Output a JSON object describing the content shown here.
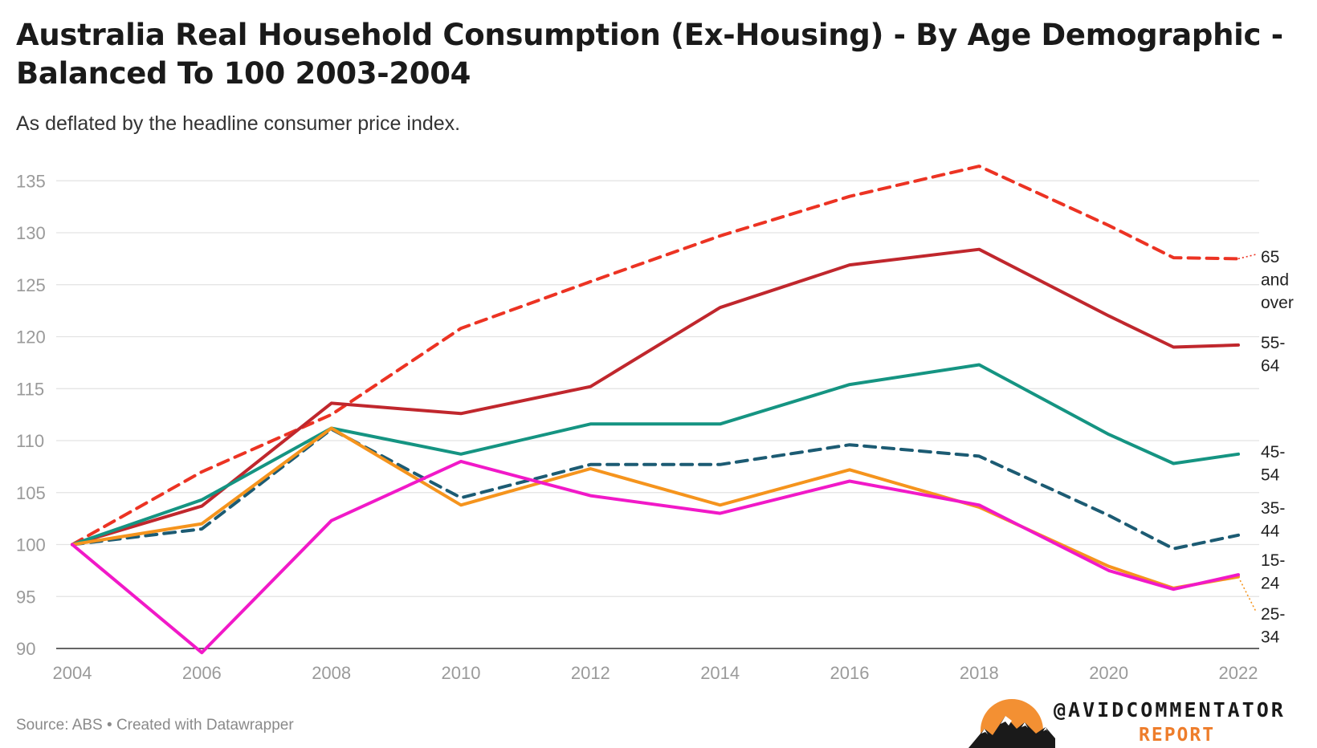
{
  "chart_data": {
    "type": "line",
    "title": "Australia Real Household Consumption (Ex-Housing) - By Age Demographic - Balanced To 100 2003-2004",
    "subtitle": "As deflated by the headline consumer price index.",
    "x": [
      2004,
      2006,
      2008,
      2010,
      2012,
      2014,
      2016,
      2018,
      2020,
      2021,
      2022
    ],
    "xticks": [
      "2004",
      "2006",
      "2008",
      "2010",
      "2012",
      "2014",
      "2016",
      "2018",
      "2020",
      "2022"
    ],
    "yticks": [
      90,
      95,
      100,
      105,
      110,
      115,
      120,
      125,
      130,
      135
    ],
    "xlim": [
      2004,
      2022
    ],
    "ylim": [
      90,
      136
    ],
    "grid": true,
    "legend": "direct labels at right end of lines",
    "series": [
      {
        "name": "65 and over",
        "label_lines": [
          "65",
          "and",
          "over"
        ],
        "color": "#ec3323",
        "dash": true,
        "values": [
          100,
          107.0,
          112.5,
          120.8,
          125.3,
          129.7,
          133.5,
          136.4,
          130.7,
          127.6,
          127.5
        ]
      },
      {
        "name": "55-64",
        "label_lines": [
          "55-",
          "64"
        ],
        "color": "#c0272d",
        "dash": false,
        "values": [
          100,
          103.7,
          113.6,
          112.6,
          115.2,
          122.8,
          126.9,
          128.4,
          122.0,
          119.0,
          119.2
        ]
      },
      {
        "name": "45-54",
        "label_lines": [
          "45-",
          "54"
        ],
        "color": "#159482",
        "dash": false,
        "values": [
          100,
          104.3,
          111.2,
          108.7,
          111.6,
          111.6,
          115.4,
          117.3,
          110.6,
          107.8,
          108.7
        ]
      },
      {
        "name": "35-44",
        "label_lines": [
          "35-",
          "44"
        ],
        "color": "#1c5b73",
        "dash": true,
        "values": [
          100,
          101.5,
          111.1,
          104.5,
          107.7,
          107.7,
          109.6,
          108.5,
          102.8,
          99.6,
          100.9
        ]
      },
      {
        "name": "25-34",
        "label_lines": [
          "25-",
          "34"
        ],
        "color": "#f5941d",
        "dash": false,
        "values": [
          100,
          102.0,
          111.2,
          103.8,
          107.3,
          103.8,
          107.2,
          103.6,
          97.9,
          95.8,
          96.9
        ]
      },
      {
        "name": "15-24",
        "label_lines": [
          "15-",
          "24"
        ],
        "color": "#f119c8",
        "dash": false,
        "values": [
          100,
          89.6,
          102.3,
          108.0,
          104.7,
          103.0,
          106.1,
          103.8,
          97.5,
          95.7,
          97.1
        ]
      }
    ]
  },
  "footer": {
    "source": "Source: ABS • Created with Datawrapper",
    "handle": "@AVIDCOMMENTATOR",
    "report": "REPORT"
  },
  "colors": {
    "logo_sun": "#f39033",
    "brand_accent": "#ee7d2b"
  }
}
